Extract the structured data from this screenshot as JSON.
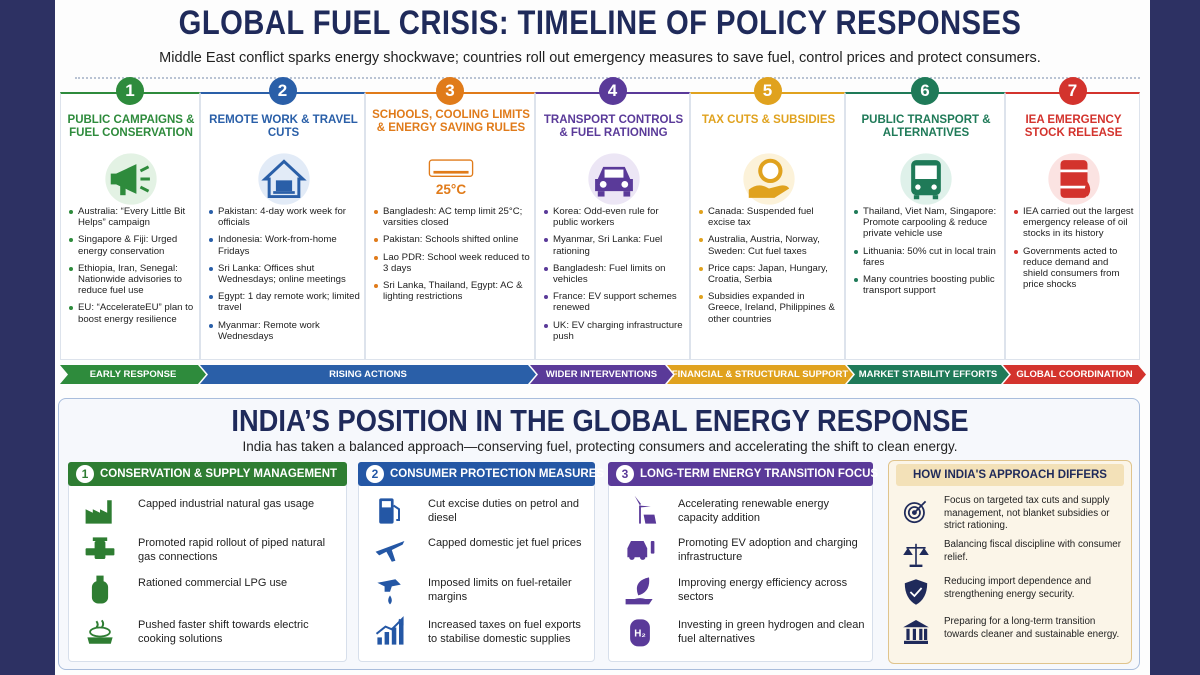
{
  "header": {
    "title": "GLOBAL FUEL CRISIS: TIMELINE OF POLICY RESPONSES",
    "subtitle": "Middle East conflict sparks energy shockwave; countries roll out emergency measures to save fuel, control prices and protect consumers."
  },
  "timeline": [
    {
      "number": "1",
      "title": "PUBLIC CAMPAIGNS & FUEL CONSERVATION",
      "items": [
        "Australia: “Every Little Bit Helps” campaign",
        "Singapore & Fiji: Urged energy conservation",
        "Ethiopia, Iran, Senegal: Nationwide advisories to reduce fuel use",
        "EU: “AccelerateEU” plan to boost energy resilience"
      ]
    },
    {
      "number": "2",
      "title": "REMOTE WORK & TRAVEL CUTS",
      "items": [
        "Pakistan: 4-day work week for officials",
        "Indonesia: Work-from-home Fridays",
        "Sri Lanka: Offices shut Wednesdays; online meetings",
        "Egypt: 1 day remote work; limited travel",
        "Myanmar: Remote work Wednesdays"
      ]
    },
    {
      "number": "3",
      "title": "SCHOOLS, COOLING LIMITS & ENERGY SAVING RULES",
      "icon_label": "25°C",
      "items": [
        "Bangladesh: AC temp limit 25°C; varsities closed",
        "Pakistan: Schools shifted online",
        "Lao PDR: School week reduced to 3 days",
        "Sri Lanka, Thailand, Egypt: AC & lighting restrictions"
      ]
    },
    {
      "number": "4",
      "title": "TRANSPORT CONTROLS & FUEL RATIONING",
      "items": [
        "Korea: Odd-even rule for public workers",
        "Myanmar, Sri Lanka: Fuel rationing",
        "Bangladesh: Fuel limits on vehicles",
        "France: EV support schemes renewed",
        "UK: EV charging infrastructure push"
      ]
    },
    {
      "number": "5",
      "title": "TAX CUTS & SUBSIDIES",
      "items": [
        "Canada: Suspended fuel excise tax",
        "Australia, Austria, Norway, Sweden: Cut fuel taxes",
        "Price caps: Japan, Hungary, Croatia, Serbia",
        "Subsidies expanded in Greece, Ireland, Philippines & other countries"
      ]
    },
    {
      "number": "6",
      "title": "PUBLIC TRANSPORT & ALTERNATIVES",
      "items": [
        "Thailand, Viet Nam, Singapore: Promote carpooling & reduce private vehicle use",
        "Lithuania: 50% cut in local train fares",
        "Many countries boosting public transport support"
      ]
    },
    {
      "number": "7",
      "title": "IEA EMERGENCY STOCK RELEASE",
      "items": [
        "IEA carried out the largest emergency release of oil stocks in its history",
        "Governments acted to reduce demand and shield consumers from price shocks"
      ]
    }
  ],
  "phases": [
    "EARLY RESPONSE",
    "RISING ACTIONS",
    "WIDER INTERVENTIONS",
    "FINANCIAL & STRUCTURAL SUPPORT",
    "MARKET STABILITY EFFORTS",
    "GLOBAL COORDINATION"
  ],
  "india": {
    "title": "INDIA’S POSITION IN THE GLOBAL ENERGY RESPONSE",
    "subtitle": "India has taken a balanced approach—conserving fuel, protecting consumers and accelerating the shift to clean energy.",
    "sections": [
      {
        "number": "1",
        "title": "CONSERVATION & SUPPLY MANAGEMENT",
        "items": [
          "Capped industrial natural gas usage",
          "Promoted rapid rollout of piped natural gas connections",
          "Rationed commercial LPG use",
          "Pushed faster shift towards electric cooking solutions"
        ]
      },
      {
        "number": "2",
        "title": "CONSUMER PROTECTION MEASURES",
        "items": [
          "Cut excise duties on petrol and diesel",
          "Capped domestic jet fuel prices",
          "Imposed limits on fuel-retailer margins",
          "Increased taxes on fuel exports to stabilise domestic supplies"
        ]
      },
      {
        "number": "3",
        "title": "LONG-TERM ENERGY TRANSITION FOCUS",
        "icon_label": "H₂",
        "items": [
          "Accelerating renewable energy capacity addition",
          "Promoting EV adoption and charging infrastructure",
          "Improving energy efficiency across sectors",
          "Investing in green hydrogen and clean fuel alternatives"
        ]
      }
    ],
    "differs": {
      "title": "HOW INDIA'S APPROACH DIFFERS",
      "items": [
        "Focus on targeted tax cuts and supply management, not blanket subsidies or strict rationing.",
        "Balancing fiscal discipline with consumer relief.",
        "Reducing import dependence and strengthening energy security.",
        "Preparing for a long-term transition towards cleaner and sustainable energy."
      ]
    }
  }
}
